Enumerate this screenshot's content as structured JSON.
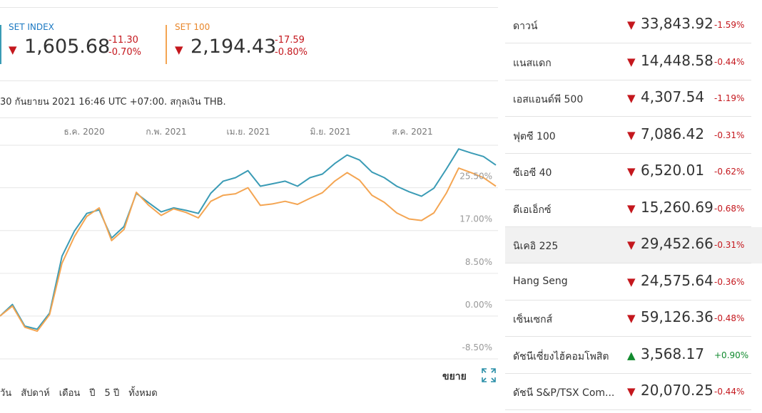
{
  "indices": [
    {
      "label": "SET INDEX",
      "arrow": "▼",
      "value": "1,605.68",
      "change": "-11.30",
      "percent": "-0.70%"
    },
    {
      "label": "SET 100",
      "arrow": "▼",
      "value": "2,194.43",
      "change": "-17.59",
      "percent": "-0.80%"
    }
  ],
  "timestamp": "30 กันยายน 2021 16:46 UTC +07:00. สกุลเงิน THB.",
  "chart": {
    "type": "line",
    "x_labels": [
      "ธ.ค. 2020",
      "ก.พ. 2021",
      "เม.ย. 2021",
      "มิ.ย. 2021",
      "ส.ค. 2021"
    ],
    "ylim": [
      -8.5,
      34.5
    ],
    "yticks": [
      {
        "value": 25.5,
        "label": "25.50%"
      },
      {
        "value": 17,
        "label": "17.00%"
      },
      {
        "value": 8.5,
        "label": "8.50%"
      },
      {
        "value": 0,
        "label": "0.00%"
      },
      {
        "value": -8.5,
        "label": "-8.50%"
      }
    ],
    "grid": true,
    "series": [
      {
        "color": "#3a9bb5",
        "values": [
          0.0,
          2.3,
          -2.0,
          -2.6,
          0.6,
          11.9,
          16.9,
          20.4,
          21.1,
          15.5,
          17.8,
          24.4,
          22.5,
          20.7,
          21.5,
          21.0,
          20.4,
          24.4,
          26.8,
          27.5,
          28.9,
          25.8,
          26.3,
          26.8,
          25.8,
          27.5,
          28.2,
          30.3,
          32.0,
          31.0,
          28.6,
          27.5,
          25.8,
          24.7,
          23.8,
          25.4,
          29.2,
          33.2,
          32.4,
          31.7,
          30.0
        ]
      },
      {
        "color": "#f4a552",
        "values": [
          0.0,
          2.0,
          -2.2,
          -3.0,
          0.3,
          10.5,
          15.8,
          19.8,
          21.5,
          15.0,
          17.2,
          24.6,
          22.0,
          20.0,
          21.3,
          20.6,
          19.5,
          22.8,
          24.0,
          24.3,
          25.5,
          22.0,
          22.3,
          22.8,
          22.2,
          23.4,
          24.5,
          26.8,
          28.5,
          27.0,
          24.0,
          22.6,
          20.5,
          19.3,
          19.0,
          20.5,
          24.4,
          29.4,
          28.5,
          27.5,
          25.8
        ]
      }
    ]
  },
  "expand_label": "ขยาย",
  "ranges": [
    "วัน",
    "สัปดาห์",
    "เดือน",
    "ปี",
    "5 ปี",
    "ทั้งหมด"
  ],
  "markets": [
    {
      "name": "ดาวน์",
      "arrow": "▼",
      "value": "33,843.92",
      "percent": "-1.59%"
    },
    {
      "name": "แนสแดก",
      "arrow": "▼",
      "value": "14,448.58",
      "percent": "-0.44%"
    },
    {
      "name": "เอสแอนด์พี 500",
      "arrow": "▼",
      "value": "4,307.54",
      "percent": "-1.19%"
    },
    {
      "name": "ฟุตซี 100",
      "arrow": "▼",
      "value": "7,086.42",
      "percent": "-0.31%"
    },
    {
      "name": "ซีเอซี 40",
      "arrow": "▼",
      "value": "6,520.01",
      "percent": "-0.62%"
    },
    {
      "name": "ดีเอเอ็กซ์",
      "arrow": "▼",
      "value": "15,260.69",
      "percent": "-0.68%"
    },
    {
      "name": "นิเคอิ 225",
      "arrow": "▼",
      "value": "29,452.66",
      "percent": "-0.31%"
    },
    {
      "name": "Hang Seng",
      "arrow": "▼",
      "value": "24,575.64",
      "percent": "-0.36%"
    },
    {
      "name": "เซ็นเซกส์",
      "arrow": "▼",
      "value": "59,126.36",
      "percent": "-0.48%"
    },
    {
      "name": "ดัชนีเซี่ยงไฮ้คอมโพสิต",
      "arrow": "▲",
      "value": "3,568.17",
      "percent": "+0.90%"
    },
    {
      "name": "ดัชนี S&P/TSX Com...",
      "arrow": "▼",
      "value": "20,070.25",
      "percent": "-0.44%"
    }
  ]
}
